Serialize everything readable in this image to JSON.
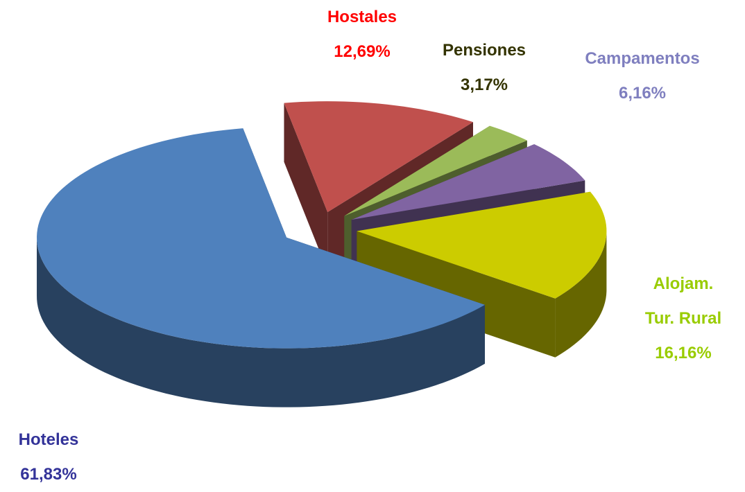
{
  "chart_data": {
    "type": "pie",
    "categories": [
      "Hoteles",
      "Hostales",
      "Pensiones",
      "Campamentos",
      "Alojam. Tur. Rural"
    ],
    "values": [
      61.83,
      12.69,
      3.17,
      6.16,
      16.16
    ],
    "value_labels": [
      "61,83%",
      "12,69%",
      "3,17%",
      "6,16%",
      "16,16%"
    ],
    "colors": [
      "#4f81bd",
      "#c0504d",
      "#9bbb59",
      "#8064a2",
      "#cccc00"
    ],
    "label_colors": [
      "#333399",
      "#ff0000",
      "#333300",
      "#7f7fbf",
      "#99cc00"
    ]
  }
}
